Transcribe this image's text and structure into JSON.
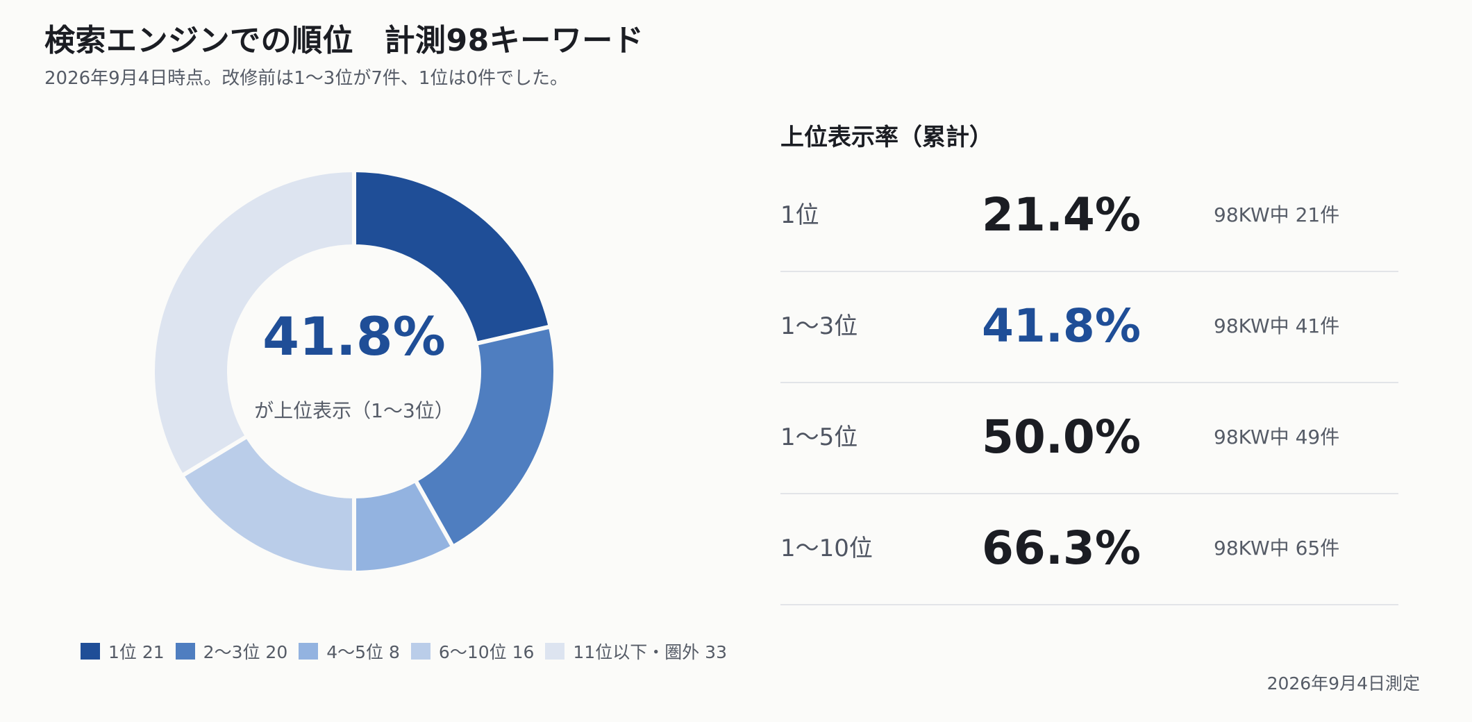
{
  "header": {
    "title": "検索エンジンでの順位　計測98キーワード",
    "subtitle": "2026年9月4日時点。改修前は1〜3位が7件、1位は0件でした。"
  },
  "donut": {
    "center_value": "41.8%",
    "center_label": "が上位表示（1〜3位）"
  },
  "chart_data": {
    "type": "pie",
    "title": "検索エンジンでの順位　計測98キーワード",
    "total": 98,
    "series": [
      {
        "name": "1位",
        "value": 21,
        "color": "#1f4e97"
      },
      {
        "name": "2〜3位",
        "value": 20,
        "color": "#4f7ec0"
      },
      {
        "name": "4〜5位",
        "value": 8,
        "color": "#93b3e0"
      },
      {
        "name": "6〜10位",
        "value": 16,
        "color": "#bacde9"
      },
      {
        "name": "11位以下・圏外",
        "value": 33,
        "color": "#dde4f0"
      }
    ],
    "legend_position": "bottom"
  },
  "legend": [
    {
      "label": "1位 21",
      "color": "#1f4e97"
    },
    {
      "label": "2〜3位 20",
      "color": "#4f7ec0"
    },
    {
      "label": "4〜5位 8",
      "color": "#93b3e0"
    },
    {
      "label": "6〜10位 16",
      "color": "#bacde9"
    },
    {
      "label": "11位以下・圏外 33",
      "color": "#dde4f0"
    }
  ],
  "rates": {
    "title": "上位表示率（累計）",
    "rows": [
      {
        "label": "1位",
        "pct": "21.4%",
        "count": "98KW中 21件"
      },
      {
        "label": "1〜3位",
        "pct": "41.8%",
        "count": "98KW中 41件"
      },
      {
        "label": "1〜5位",
        "pct": "50.0%",
        "count": "98KW中 49件"
      },
      {
        "label": "1〜10位",
        "pct": "66.3%",
        "count": "98KW中 65件"
      }
    ]
  },
  "footer": {
    "date": "2026年9月4日測定"
  },
  "colors": {
    "accent": "#1f4e97",
    "text": "#1b1d23",
    "muted": "#555b66",
    "background": "#fbfbf9"
  }
}
